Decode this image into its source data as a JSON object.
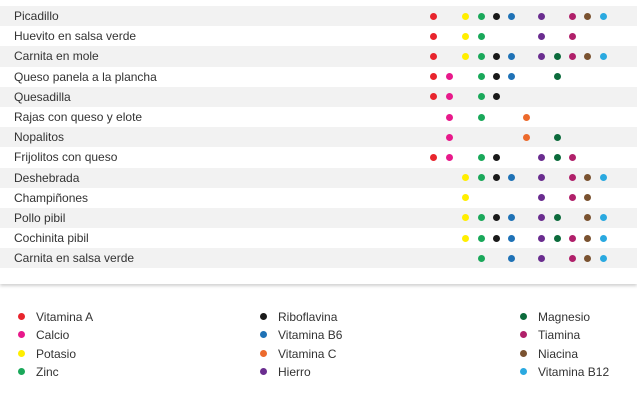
{
  "chart_data": {
    "type": "table",
    "rows": [
      "Picadillo",
      "Huevito en salsa verde",
      "Carnita en mole",
      "Queso panela a la plancha",
      "Quesadilla",
      "Rajas con queso y elote",
      "Nopalitos",
      "Frijolitos con queso",
      "Deshebrada",
      "Champiñones",
      "Pollo pibil",
      "Cochinita pibil",
      "Carnita en salsa verde"
    ],
    "nutrients": [
      {
        "name": "Vitamina A",
        "color": "#e8252d"
      },
      {
        "name": "Calcio",
        "color": "#e8198b"
      },
      {
        "name": "Potasio",
        "color": "#ffee00"
      },
      {
        "name": "Zinc",
        "color": "#1aa85a"
      },
      {
        "name": "Riboflavina",
        "color": "#1a1a1a"
      },
      {
        "name": "Vitamina B6",
        "color": "#1f72b6"
      },
      {
        "name": "Vitamina C",
        "color": "#ec6a2c"
      },
      {
        "name": "Hierro",
        "color": "#6a2d8f"
      },
      {
        "name": "Magnesio",
        "color": "#0c6b3c"
      },
      {
        "name": "Tiamina",
        "color": "#b0206a"
      },
      {
        "name": "Niacina",
        "color": "#7a5230"
      },
      {
        "name": "Vitamina B12",
        "color": "#2aa9e0"
      }
    ],
    "presence": [
      [
        1,
        0,
        1,
        1,
        1,
        1,
        0,
        1,
        0,
        1,
        1,
        1
      ],
      [
        1,
        0,
        1,
        1,
        0,
        0,
        0,
        1,
        0,
        1,
        0,
        0
      ],
      [
        1,
        0,
        1,
        1,
        1,
        1,
        0,
        1,
        1,
        1,
        1,
        1
      ],
      [
        1,
        1,
        0,
        1,
        1,
        1,
        0,
        0,
        1,
        0,
        0,
        0
      ],
      [
        1,
        1,
        0,
        1,
        1,
        0,
        0,
        0,
        0,
        0,
        0,
        0
      ],
      [
        0,
        1,
        0,
        1,
        0,
        0,
        1,
        0,
        0,
        0,
        0,
        0
      ],
      [
        0,
        1,
        0,
        0,
        0,
        0,
        1,
        0,
        1,
        0,
        0,
        0
      ],
      [
        1,
        1,
        0,
        1,
        1,
        0,
        0,
        1,
        1,
        1,
        0,
        0
      ],
      [
        0,
        0,
        1,
        1,
        1,
        1,
        0,
        1,
        0,
        1,
        1,
        1
      ],
      [
        0,
        0,
        1,
        0,
        0,
        0,
        0,
        1,
        0,
        1,
        1,
        0
      ],
      [
        0,
        0,
        1,
        1,
        1,
        1,
        0,
        1,
        1,
        0,
        1,
        1
      ],
      [
        0,
        0,
        1,
        1,
        1,
        1,
        0,
        1,
        1,
        1,
        1,
        1
      ],
      [
        0,
        0,
        0,
        1,
        0,
        1,
        0,
        1,
        0,
        1,
        1,
        1
      ]
    ]
  }
}
